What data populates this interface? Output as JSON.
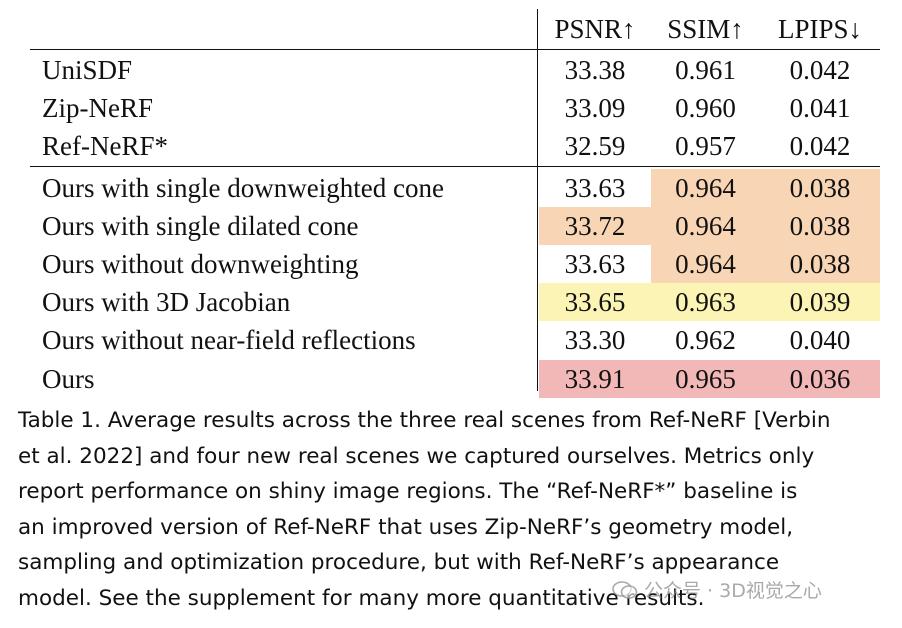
{
  "table": {
    "headers": [
      "PSNR↑",
      "SSIM↑",
      "LPIPS↓"
    ],
    "colors": {
      "best": "#f2b8b8",
      "second": "#f8d5b4",
      "third": "#fbf4b4"
    },
    "rows": [
      {
        "label": "UniSDF",
        "psnr": "33.38",
        "ssim": "0.961",
        "lpips": "0.042"
      },
      {
        "label": "Zip-NeRF",
        "psnr": "33.09",
        "ssim": "0.960",
        "lpips": "0.041"
      },
      {
        "label": "Ref-NeRF*",
        "psnr": "32.59",
        "ssim": "0.957",
        "lpips": "0.042"
      },
      {
        "label": "Ours with single downweighted cone",
        "psnr": "33.63",
        "ssim": "0.964",
        "lpips": "0.038"
      },
      {
        "label": "Ours with single dilated cone",
        "psnr": "33.72",
        "ssim": "0.964",
        "lpips": "0.038"
      },
      {
        "label": "Ours without downweighting",
        "psnr": "33.63",
        "ssim": "0.964",
        "lpips": "0.038"
      },
      {
        "label": "Ours with 3D Jacobian",
        "psnr": "33.65",
        "ssim": "0.963",
        "lpips": "0.039"
      },
      {
        "label": "Ours without near-field reflections",
        "psnr": "33.30",
        "ssim": "0.962",
        "lpips": "0.040"
      },
      {
        "label": "Ours",
        "psnr": "33.91",
        "ssim": "0.965",
        "lpips": "0.036"
      }
    ]
  },
  "caption": {
    "lines": [
      "Table 1.  Average results across the three real scenes from Ref-NeRF [Verbin",
      "et al. 2022] and four new real scenes we captured ourselves. Metrics only",
      "report performance on shiny image regions. The “Ref-NeRF*” baseline is",
      "an improved version of Ref-NeRF that uses Zip-NeRF’s geometry model,",
      "sampling and optimization procedure, but with Ref-NeRF’s appearance",
      "model. See the supplement for many more quantitative results."
    ]
  },
  "watermark": {
    "text": "公众号 · 3D视觉之心"
  }
}
